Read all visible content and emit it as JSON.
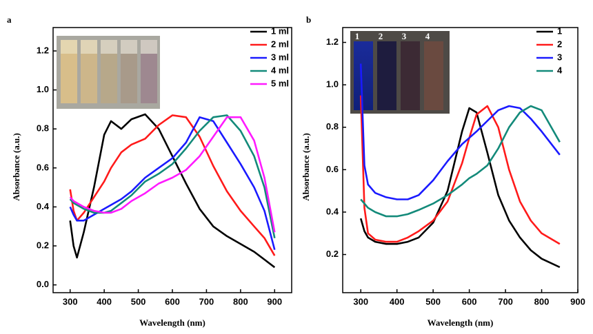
{
  "chart_data": [
    {
      "type": "line",
      "panel_label": "a",
      "x_label": "Wavelength (nm)",
      "y_label": "Absorbance (a.u.)",
      "x": [
        300,
        310,
        320,
        340,
        370,
        400,
        420,
        450,
        480,
        520,
        560,
        600,
        640,
        680,
        720,
        760,
        800,
        840,
        870,
        900
      ],
      "series": [
        {
          "name": "1 ml",
          "color": "#000000",
          "values": [
            0.33,
            0.2,
            0.14,
            0.27,
            0.5,
            0.77,
            0.84,
            0.8,
            0.85,
            0.875,
            0.8,
            0.66,
            0.52,
            0.39,
            0.3,
            0.25,
            0.21,
            0.17,
            0.13,
            0.09
          ]
        },
        {
          "name": "2 ml",
          "color": "#ff1a1a",
          "values": [
            0.49,
            0.38,
            0.33,
            0.37,
            0.45,
            0.53,
            0.6,
            0.68,
            0.72,
            0.75,
            0.82,
            0.87,
            0.86,
            0.76,
            0.61,
            0.48,
            0.38,
            0.3,
            0.24,
            0.15
          ]
        },
        {
          "name": "3 ml",
          "color": "#1a1aff",
          "values": [
            0.4,
            0.36,
            0.33,
            0.33,
            0.36,
            0.39,
            0.41,
            0.44,
            0.48,
            0.55,
            0.6,
            0.65,
            0.73,
            0.86,
            0.84,
            0.73,
            0.62,
            0.5,
            0.38,
            0.18
          ]
        },
        {
          "name": "4 ml",
          "color": "#138a7a",
          "values": [
            0.44,
            0.42,
            0.41,
            0.39,
            0.37,
            0.37,
            0.38,
            0.42,
            0.46,
            0.53,
            0.57,
            0.62,
            0.7,
            0.79,
            0.86,
            0.87,
            0.79,
            0.66,
            0.5,
            0.24
          ]
        },
        {
          "name": "5 ml",
          "color": "#ff1aff",
          "values": [
            0.45,
            0.43,
            0.42,
            0.4,
            0.38,
            0.37,
            0.37,
            0.39,
            0.43,
            0.47,
            0.52,
            0.55,
            0.59,
            0.66,
            0.76,
            0.86,
            0.86,
            0.74,
            0.55,
            0.27
          ]
        }
      ],
      "xlim": [
        250,
        950
      ],
      "xticks": [
        300,
        400,
        500,
        600,
        700,
        800,
        900
      ],
      "ylim": [
        -0.04,
        1.32
      ],
      "yticks": [
        {
          "value": 0,
          "label": "0.0"
        },
        0.2,
        0.4,
        0.6,
        0.8,
        {
          "value": 1,
          "label": "1.0"
        },
        1.2
      ],
      "legend_loc": "upper right"
    },
    {
      "type": "line",
      "panel_label": "b",
      "x_label": "Wavelength (nm)",
      "y_label": "Absorbance (a.u.)",
      "inset_labels": [
        "1",
        "2",
        "3",
        "4"
      ],
      "x": [
        300,
        310,
        320,
        340,
        370,
        400,
        430,
        460,
        500,
        540,
        580,
        600,
        620,
        650,
        680,
        710,
        740,
        770,
        800,
        850
      ],
      "series": [
        {
          "name": "1",
          "color": "#000000",
          "values": [
            0.37,
            0.31,
            0.28,
            0.26,
            0.25,
            0.25,
            0.26,
            0.28,
            0.35,
            0.5,
            0.78,
            0.89,
            0.87,
            0.68,
            0.48,
            0.36,
            0.28,
            0.22,
            0.18,
            0.14
          ]
        },
        {
          "name": "2",
          "color": "#ff1a1a",
          "values": [
            0.95,
            0.42,
            0.3,
            0.27,
            0.26,
            0.26,
            0.28,
            0.31,
            0.36,
            0.45,
            0.63,
            0.75,
            0.86,
            0.9,
            0.8,
            0.6,
            0.45,
            0.36,
            0.3,
            0.25
          ]
        },
        {
          "name": "3",
          "color": "#1a1aff",
          "values": [
            1.1,
            0.62,
            0.53,
            0.49,
            0.47,
            0.46,
            0.46,
            0.48,
            0.55,
            0.64,
            0.72,
            0.75,
            0.78,
            0.83,
            0.88,
            0.9,
            0.89,
            0.84,
            0.78,
            0.67
          ]
        },
        {
          "name": "4",
          "color": "#138a7a",
          "values": [
            0.46,
            0.44,
            0.42,
            0.4,
            0.38,
            0.38,
            0.39,
            0.41,
            0.44,
            0.48,
            0.53,
            0.56,
            0.58,
            0.62,
            0.7,
            0.8,
            0.87,
            0.9,
            0.88,
            0.73
          ]
        }
      ],
      "xlim": [
        250,
        900
      ],
      "xticks": [
        300,
        400,
        500,
        600,
        700,
        800,
        900
      ],
      "ylim": [
        0.02,
        1.27
      ],
      "yticks": [
        0.2,
        0.4,
        0.6,
        0.8,
        {
          "value": 1,
          "label": "1.0"
        },
        1.2
      ],
      "legend_loc": "upper right"
    }
  ]
}
